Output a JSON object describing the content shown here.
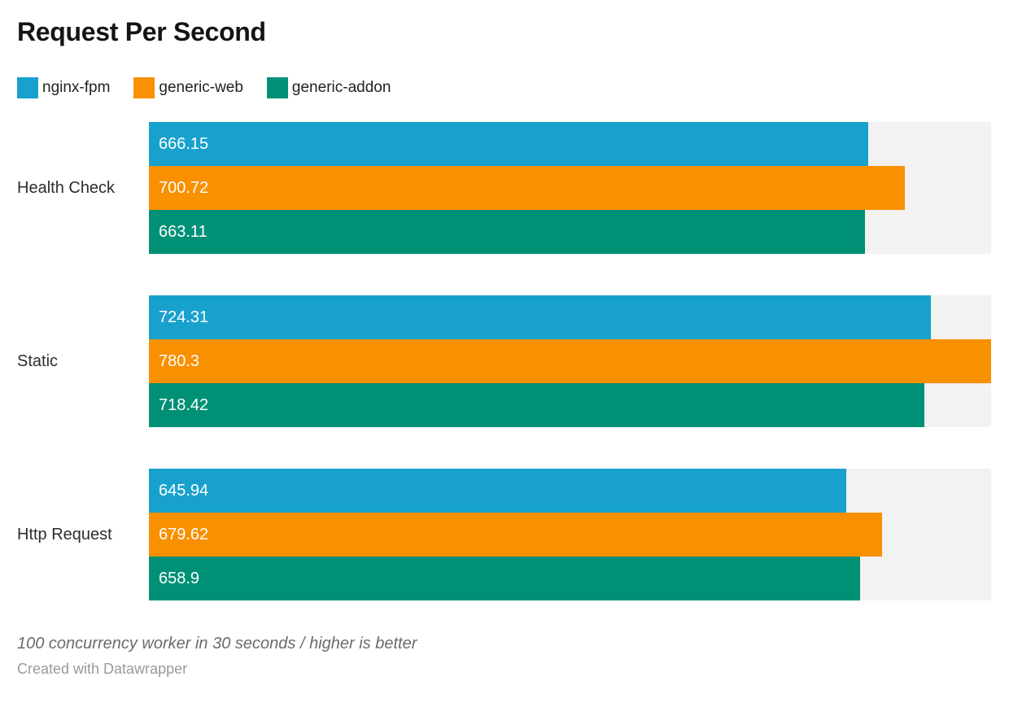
{
  "title": "Request Per Second",
  "footer": {
    "note": "100 concurrency worker in 30 seconds / higher is better",
    "byline": "Created with Datawrapper"
  },
  "colors": {
    "track": "#f2f2f2",
    "value_label": "#ffffff",
    "title_text": "#141414",
    "category_text": "#2d2d2d",
    "note_text": "#6b6b6b",
    "byline_text": "#9a9a9a"
  },
  "chart_data": {
    "type": "bar",
    "orientation": "horizontal",
    "title": "Request Per Second",
    "categories": [
      "Health Check",
      "Static",
      "Http Request"
    ],
    "series": [
      {
        "name": "nginx-fpm",
        "color": "#18a1cd",
        "values": [
          666.15,
          724.31,
          645.94
        ]
      },
      {
        "name": "generic-web",
        "color": "#f89000",
        "values": [
          700.72,
          780.3,
          679.62
        ]
      },
      {
        "name": "generic-addon",
        "color": "#009076",
        "values": [
          663.11,
          718.42,
          658.9
        ]
      }
    ],
    "xlim": [
      0,
      780.3
    ],
    "value_labels": "inside-left",
    "legend_position": "top-left",
    "grid": false,
    "bar_background_track": true
  }
}
